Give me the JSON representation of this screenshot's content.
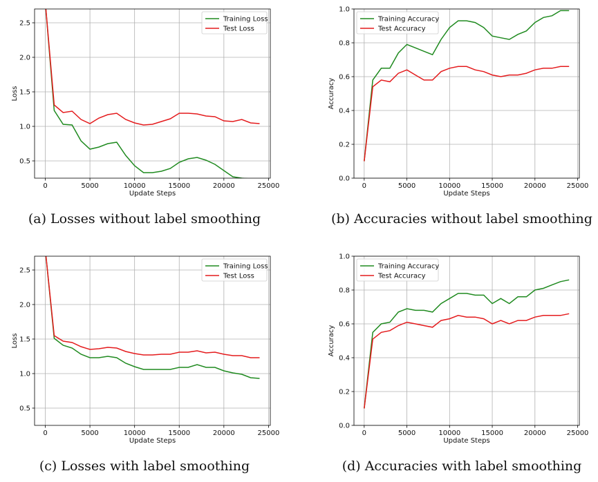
{
  "chart_data": [
    {
      "type": "line",
      "caption": "(a) Losses without label smoothing",
      "xlabel": "Update Steps",
      "ylabel": "Loss",
      "xlim": [
        -1200,
        25200
      ],
      "ylim": [
        0.25,
        2.7
      ],
      "xticks": [
        0,
        5000,
        10000,
        15000,
        20000,
        25000
      ],
      "yticks": [
        0.5,
        1.0,
        1.5,
        2.0,
        2.5
      ],
      "ytick_labels": [
        "0.5",
        "1.0",
        "1.5",
        "2.0",
        "2.5"
      ],
      "grid": true,
      "legend": "upper right",
      "x": [
        0,
        1000,
        2000,
        3000,
        4000,
        5000,
        6000,
        7000,
        8000,
        9000,
        10000,
        11000,
        12000,
        13000,
        14000,
        15000,
        16000,
        17000,
        18000,
        19000,
        20000,
        21000,
        22000,
        23000,
        24000
      ],
      "series": [
        {
          "name": "Training Loss",
          "color": "#1f8a1f",
          "values": [
            2.8,
            1.23,
            1.03,
            1.02,
            0.79,
            0.67,
            0.7,
            0.75,
            0.77,
            0.58,
            0.43,
            0.33,
            0.33,
            0.35,
            0.39,
            0.48,
            0.53,
            0.55,
            0.51,
            0.45,
            0.36,
            0.27,
            0.25,
            0.24,
            0.23
          ]
        },
        {
          "name": "Test Loss",
          "color": "#e41a1c",
          "values": [
            2.8,
            1.31,
            1.2,
            1.22,
            1.1,
            1.04,
            1.12,
            1.17,
            1.19,
            1.1,
            1.05,
            1.02,
            1.03,
            1.07,
            1.11,
            1.19,
            1.19,
            1.18,
            1.15,
            1.14,
            1.08,
            1.07,
            1.1,
            1.05,
            1.04
          ]
        }
      ]
    },
    {
      "type": "line",
      "caption": "(b) Accuracies without label smoothing",
      "xlabel": "Update Steps",
      "ylabel": "Accuracy",
      "xlim": [
        -1200,
        25200
      ],
      "ylim": [
        0.0,
        1.0
      ],
      "xticks": [
        0,
        5000,
        10000,
        15000,
        20000,
        25000
      ],
      "yticks": [
        0.0,
        0.2,
        0.4,
        0.6,
        0.8,
        1.0
      ],
      "ytick_labels": [
        "0.0",
        "0.2",
        "0.4",
        "0.6",
        "0.8",
        "1.0"
      ],
      "grid": true,
      "legend": "upper left",
      "x": [
        0,
        1000,
        2000,
        3000,
        4000,
        5000,
        6000,
        7000,
        8000,
        9000,
        10000,
        11000,
        12000,
        13000,
        14000,
        15000,
        16000,
        17000,
        18000,
        19000,
        20000,
        21000,
        22000,
        23000,
        24000
      ],
      "series": [
        {
          "name": "Training Accuracy",
          "color": "#1f8a1f",
          "values": [
            0.1,
            0.58,
            0.65,
            0.65,
            0.74,
            0.79,
            0.77,
            0.75,
            0.73,
            0.82,
            0.89,
            0.93,
            0.93,
            0.92,
            0.89,
            0.84,
            0.83,
            0.82,
            0.85,
            0.87,
            0.92,
            0.95,
            0.96,
            0.99,
            0.99
          ]
        },
        {
          "name": "Test Accuracy",
          "color": "#e41a1c",
          "values": [
            0.1,
            0.54,
            0.58,
            0.57,
            0.62,
            0.64,
            0.61,
            0.58,
            0.58,
            0.63,
            0.65,
            0.66,
            0.66,
            0.64,
            0.63,
            0.61,
            0.6,
            0.61,
            0.61,
            0.62,
            0.64,
            0.65,
            0.65,
            0.66,
            0.66
          ]
        }
      ]
    },
    {
      "type": "line",
      "caption": "(c) Losses with label smoothing",
      "xlabel": "Update Steps",
      "ylabel": "Loss",
      "xlim": [
        -1200,
        25200
      ],
      "ylim": [
        0.25,
        2.7
      ],
      "xticks": [
        0,
        5000,
        10000,
        15000,
        20000,
        25000
      ],
      "yticks": [
        0.5,
        1.0,
        1.5,
        2.0,
        2.5
      ],
      "ytick_labels": [
        "0.5",
        "1.0",
        "1.5",
        "2.0",
        "2.5"
      ],
      "grid": true,
      "legend": "upper right",
      "x": [
        0,
        1000,
        2000,
        3000,
        4000,
        5000,
        6000,
        7000,
        8000,
        9000,
        10000,
        11000,
        12000,
        13000,
        14000,
        15000,
        16000,
        17000,
        18000,
        19000,
        20000,
        21000,
        22000,
        23000,
        24000
      ],
      "series": [
        {
          "name": "Training Loss",
          "color": "#1f8a1f",
          "values": [
            2.8,
            1.51,
            1.41,
            1.37,
            1.28,
            1.23,
            1.23,
            1.25,
            1.23,
            1.15,
            1.1,
            1.06,
            1.06,
            1.06,
            1.06,
            1.09,
            1.09,
            1.13,
            1.09,
            1.09,
            1.04,
            1.01,
            0.99,
            0.94,
            0.93
          ]
        },
        {
          "name": "Test Loss",
          "color": "#e41a1c",
          "values": [
            2.8,
            1.55,
            1.47,
            1.45,
            1.39,
            1.35,
            1.36,
            1.38,
            1.37,
            1.32,
            1.29,
            1.27,
            1.27,
            1.28,
            1.28,
            1.31,
            1.31,
            1.33,
            1.3,
            1.31,
            1.28,
            1.26,
            1.26,
            1.23,
            1.23
          ]
        }
      ]
    },
    {
      "type": "line",
      "caption": "(d) Accuracies with label smoothing",
      "xlabel": "Update Steps",
      "ylabel": "Accuracy",
      "xlim": [
        -1200,
        25200
      ],
      "ylim": [
        0.0,
        1.0
      ],
      "xticks": [
        0,
        5000,
        10000,
        15000,
        20000,
        25000
      ],
      "yticks": [
        0.0,
        0.2,
        0.4,
        0.6,
        0.8,
        1.0
      ],
      "ytick_labels": [
        "0.0",
        "0.2",
        "0.4",
        "0.6",
        "0.8",
        "1.0"
      ],
      "grid": true,
      "legend": "upper left",
      "x": [
        0,
        1000,
        2000,
        3000,
        4000,
        5000,
        6000,
        7000,
        8000,
        9000,
        10000,
        11000,
        12000,
        13000,
        14000,
        15000,
        16000,
        17000,
        18000,
        19000,
        20000,
        21000,
        22000,
        23000,
        24000
      ],
      "series": [
        {
          "name": "Training Accuracy",
          "color": "#1f8a1f",
          "values": [
            0.1,
            0.55,
            0.6,
            0.61,
            0.67,
            0.69,
            0.68,
            0.68,
            0.67,
            0.72,
            0.75,
            0.78,
            0.78,
            0.77,
            0.77,
            0.72,
            0.75,
            0.72,
            0.76,
            0.76,
            0.8,
            0.81,
            0.83,
            0.85,
            0.86
          ]
        },
        {
          "name": "Test Accuracy",
          "color": "#e41a1c",
          "values": [
            0.1,
            0.51,
            0.55,
            0.56,
            0.59,
            0.61,
            0.6,
            0.59,
            0.58,
            0.62,
            0.63,
            0.65,
            0.64,
            0.64,
            0.63,
            0.6,
            0.62,
            0.6,
            0.62,
            0.62,
            0.64,
            0.65,
            0.65,
            0.65,
            0.66
          ]
        }
      ]
    }
  ]
}
